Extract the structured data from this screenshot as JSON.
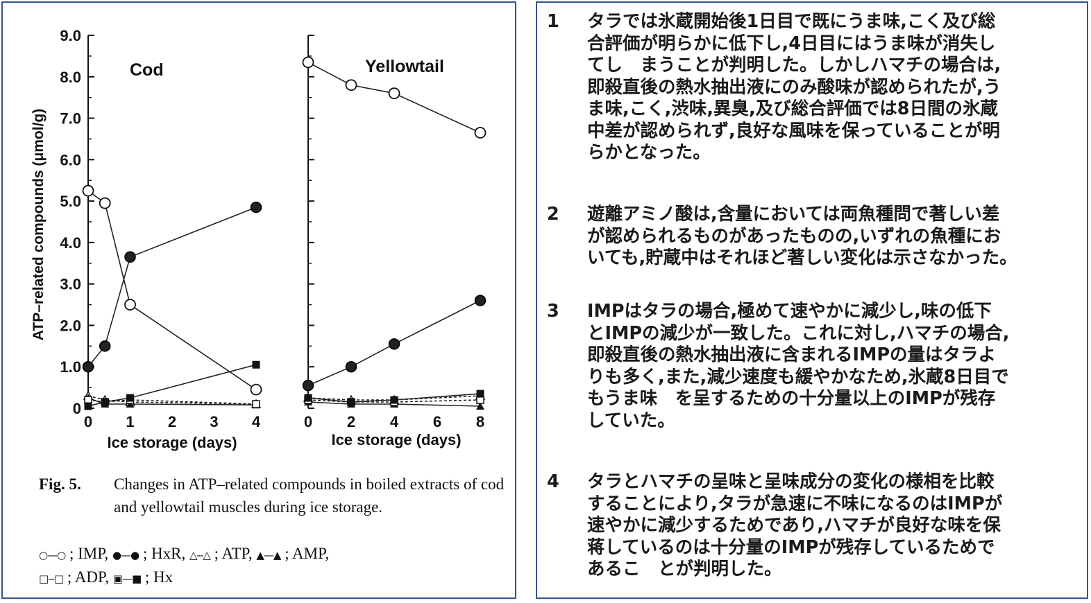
{
  "chart_data": [
    {
      "type": "line",
      "title": "Cod",
      "xlabel": "Ice storage (days)",
      "ylabel": "ATP–related compounds (μmol/g)",
      "xlim": [
        0,
        4
      ],
      "ylim": [
        0,
        9.0
      ],
      "x_ticks": [
        "0",
        "1",
        "2",
        "3",
        "4"
      ],
      "y_ticks": [
        "0",
        "1.0",
        "2.0",
        "3.0",
        "4.0",
        "5.0",
        "6.0",
        "7.0",
        "8.0",
        "9.0"
      ],
      "series": [
        {
          "name": "IMP",
          "marker": "open-circle",
          "x": [
            0,
            0.4,
            1,
            4
          ],
          "y": [
            5.25,
            4.95,
            2.5,
            0.45
          ]
        },
        {
          "name": "HxR",
          "marker": "filled-circle",
          "x": [
            0,
            0.4,
            1,
            4
          ],
          "y": [
            1.0,
            1.5,
            3.65,
            4.85
          ]
        },
        {
          "name": "ATP",
          "marker": "open-triangle",
          "x": [
            0,
            0.4,
            1,
            4
          ],
          "y": [
            0.3,
            0.2,
            0.15,
            0.1
          ]
        },
        {
          "name": "AMP",
          "marker": "filled-triangle",
          "x": [
            0,
            0.4,
            1,
            4
          ],
          "y": [
            0.25,
            0.1,
            0.1,
            0.08
          ]
        },
        {
          "name": "ADP",
          "marker": "open-square",
          "x": [
            0,
            0.4,
            1,
            4
          ],
          "y": [
            0.2,
            0.15,
            0.2,
            0.1
          ]
        },
        {
          "name": "Hx",
          "marker": "filled-square",
          "x": [
            0,
            0.4,
            1,
            4
          ],
          "y": [
            0.05,
            0.15,
            0.25,
            1.05
          ]
        }
      ]
    },
    {
      "type": "line",
      "title": "Yellowtail",
      "xlabel": "Ice storage (days)",
      "ylabel": "",
      "xlim": [
        0,
        8
      ],
      "ylim": [
        0,
        9.0
      ],
      "x_ticks": [
        "0",
        "2",
        "4",
        "6",
        "8"
      ],
      "series": [
        {
          "name": "IMP",
          "marker": "open-circle",
          "x": [
            0,
            2,
            4,
            8
          ],
          "y": [
            8.35,
            7.8,
            7.6,
            6.65
          ]
        },
        {
          "name": "HxR",
          "marker": "filled-circle",
          "x": [
            0,
            2,
            4,
            8
          ],
          "y": [
            0.55,
            1.0,
            1.55,
            2.6
          ]
        },
        {
          "name": "ATP",
          "marker": "open-triangle",
          "x": [
            0,
            2,
            4,
            8
          ],
          "y": [
            0.25,
            0.2,
            0.2,
            0.3
          ]
        },
        {
          "name": "AMP",
          "marker": "filled-triangle",
          "x": [
            0,
            2,
            4,
            8
          ],
          "y": [
            0.15,
            0.1,
            0.1,
            0.05
          ]
        },
        {
          "name": "ADP",
          "marker": "open-square",
          "x": [
            0,
            2,
            4,
            8
          ],
          "y": [
            0.2,
            0.15,
            0.15,
            0.2
          ]
        },
        {
          "name": "Hx",
          "marker": "filled-square",
          "x": [
            0,
            2,
            4,
            8
          ],
          "y": [
            0.25,
            0.15,
            0.2,
            0.35
          ]
        }
      ]
    }
  ],
  "caption": {
    "label": "Fig. 5.",
    "text": "Changes in ATP–related compounds in boiled extracts of cod and yellowtail muscles during ice storage.",
    "legend_line1": "; IMP,   ; HxR,   ; ATP,   ; AMP,",
    "legend_line2": "; ADP,   ; Hx"
  },
  "legend_syms": {
    "imp": "○—○",
    "hxr": "●—●",
    "atp": "△--△",
    "amp": "▲—▲",
    "adp": "□--□",
    "hx": "▣—■"
  },
  "findings": [
    {
      "num": "1",
      "text": "タラでは氷蔵開始後1日目で既にうま味,こく及び総\n合評価が明らかに低下し,4日目にはうま味が消失し\nてし　まうことが判明した。しかしハマチの場合は,\n即殺直後の熱水抽出液にのみ酸味が認められたが,う\nま味,こく,渋味,異臭,及び総合評価では8日間の氷蔵\n中差が認められず,良好な風味を保っていることが明\nらかとなった。"
    },
    {
      "num": "2",
      "text": "遊離アミノ酸は,含量においては両魚種問で著しい差\nが認められるものがあったものの,いずれの魚種にお\nいても,貯蔵中はそれほど著しい変化は示さなかった。"
    },
    {
      "num": "3",
      "text": "IMPはタラの場合,極めて速やかに減少し,味の低下\nとIMPの減少が一致した。これに対し,ハマチの場合,\n即殺直後の熱水抽出液に含まれるIMPの量はタラよ\nりも多く,また,減少速度も緩やかなため,氷蔵8日目で\nもうま味　を呈するための十分量以上のIMPが残存\nしていた。"
    },
    {
      "num": "4",
      "text": "タラとハマチの呈味と呈味成分の変化の様相を比較\nすることにより,タラが急速に不味になるのはIMPが\n速やかに減少するためであり,ハマチが良好な味を保\n蒋しているのは十分量のIMPが残存しているためで\nあるこ　とが判明した。"
    }
  ]
}
